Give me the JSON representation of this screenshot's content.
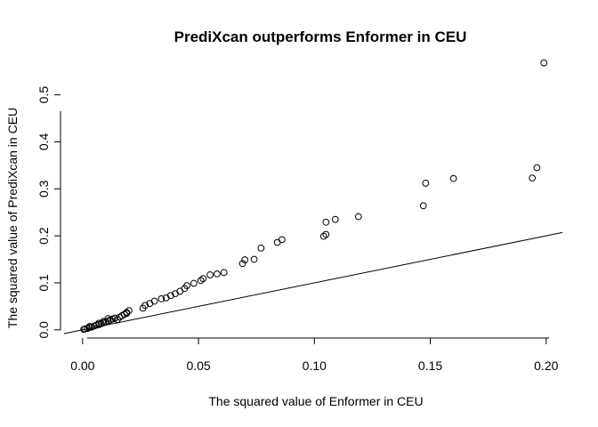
{
  "chart_data": {
    "type": "scatter",
    "title": "PrediXcan outperforms Enformer in CEU",
    "xlabel": "The squared value of Enformer in CEU",
    "ylabel": "The squared value of PrediXcan in CEU",
    "xlim": [
      -0.008,
      0.207
    ],
    "ylim": [
      -0.008,
      0.575
    ],
    "x_ticks": [
      0.0,
      0.05,
      0.1,
      0.15,
      0.2
    ],
    "x_tick_labels": [
      "0.00",
      "0.05",
      "0.10",
      "0.15",
      "0.20"
    ],
    "y_ticks": [
      0.0,
      0.1,
      0.2,
      0.3,
      0.4,
      0.5
    ],
    "y_tick_labels": [
      "0.0",
      "0.1",
      "0.2",
      "0.3",
      "0.4",
      "0.5"
    ],
    "reference_line": {
      "intercept": 0,
      "slope": 1
    },
    "grid": false,
    "points": [
      [
        0.199,
        0.568
      ],
      [
        0.196,
        0.345
      ],
      [
        0.194,
        0.323
      ],
      [
        0.16,
        0.322
      ],
      [
        0.148,
        0.312
      ],
      [
        0.147,
        0.264
      ],
      [
        0.119,
        0.241
      ],
      [
        0.109,
        0.235
      ],
      [
        0.105,
        0.229
      ],
      [
        0.105,
        0.203
      ],
      [
        0.104,
        0.199
      ],
      [
        0.086,
        0.192
      ],
      [
        0.084,
        0.186
      ],
      [
        0.077,
        0.174
      ],
      [
        0.074,
        0.15
      ],
      [
        0.07,
        0.149
      ],
      [
        0.069,
        0.141
      ],
      [
        0.061,
        0.122
      ],
      [
        0.058,
        0.119
      ],
      [
        0.055,
        0.117
      ],
      [
        0.052,
        0.109
      ],
      [
        0.051,
        0.105
      ],
      [
        0.048,
        0.099
      ],
      [
        0.045,
        0.094
      ],
      [
        0.044,
        0.088
      ],
      [
        0.042,
        0.082
      ],
      [
        0.04,
        0.077
      ],
      [
        0.038,
        0.073
      ],
      [
        0.036,
        0.068
      ],
      [
        0.034,
        0.066
      ],
      [
        0.031,
        0.061
      ],
      [
        0.029,
        0.056
      ],
      [
        0.027,
        0.052
      ],
      [
        0.026,
        0.046
      ],
      [
        0.02,
        0.041
      ],
      [
        0.019,
        0.037
      ],
      [
        0.018,
        0.033
      ],
      [
        0.017,
        0.03
      ],
      [
        0.016,
        0.027
      ],
      [
        0.014,
        0.025
      ],
      [
        0.013,
        0.023
      ],
      [
        0.012,
        0.021
      ],
      [
        0.011,
        0.019
      ],
      [
        0.01,
        0.017
      ],
      [
        0.009,
        0.015
      ],
      [
        0.008,
        0.013
      ],
      [
        0.007,
        0.011
      ],
      [
        0.006,
        0.01
      ],
      [
        0.005,
        0.008
      ],
      [
        0.004,
        0.006
      ],
      [
        0.003,
        0.005
      ],
      [
        0.002,
        0.003
      ],
      [
        0.001,
        0.002
      ],
      [
        0.0005,
        0.001
      ],
      [
        0.015,
        0.022
      ],
      [
        0.011,
        0.024
      ],
      [
        0.007,
        0.014
      ],
      [
        0.003,
        0.007
      ],
      [
        0.019,
        0.035
      ],
      [
        0.009,
        0.018
      ]
    ]
  }
}
